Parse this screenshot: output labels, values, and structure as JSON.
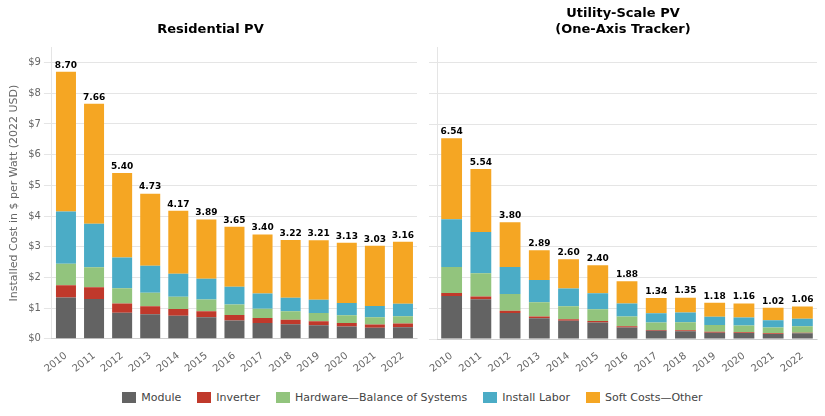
{
  "chart_data": [
    {
      "type": "bar",
      "stacked": true,
      "title": "Residential PV",
      "categories": [
        "2010",
        "2011",
        "2012",
        "2013",
        "2014",
        "2015",
        "2016",
        "2017",
        "2018",
        "2019",
        "2020",
        "2021",
        "2022"
      ],
      "series": [
        {
          "name": "Module",
          "color": "#636363",
          "values": [
            1.35,
            1.3,
            0.85,
            0.8,
            0.75,
            0.7,
            0.6,
            0.52,
            0.48,
            0.44,
            0.4,
            0.36,
            0.38
          ]
        },
        {
          "name": "Inverter",
          "color": "#c0392b",
          "values": [
            0.4,
            0.38,
            0.3,
            0.26,
            0.22,
            0.2,
            0.18,
            0.16,
            0.14,
            0.13,
            0.12,
            0.11,
            0.12
          ]
        },
        {
          "name": "Hardware—Balance of Systems",
          "color": "#92c47d",
          "values": [
            0.7,
            0.65,
            0.5,
            0.44,
            0.4,
            0.38,
            0.34,
            0.3,
            0.28,
            0.27,
            0.25,
            0.23,
            0.24
          ]
        },
        {
          "name": "Install Labor",
          "color": "#4bacc6",
          "values": [
            1.7,
            1.42,
            1.0,
            0.88,
            0.75,
            0.68,
            0.58,
            0.5,
            0.44,
            0.43,
            0.4,
            0.37,
            0.4
          ]
        },
        {
          "name": "Soft Costs—Other",
          "color": "#f5a623",
          "values": [
            4.55,
            3.91,
            2.75,
            2.35,
            2.05,
            1.93,
            1.95,
            1.92,
            1.88,
            1.94,
            1.96,
            1.96,
            2.02
          ]
        }
      ],
      "totals": [
        8.7,
        7.66,
        5.4,
        4.73,
        4.17,
        3.89,
        3.65,
        3.4,
        3.22,
        3.21,
        3.13,
        3.03,
        3.16
      ],
      "total_labels": [
        "8.70",
        "7.66",
        "5.40",
        "4.73",
        "4.17",
        "3.89",
        "3.65",
        "3.40",
        "3.22",
        "3.21",
        "3.13",
        "3.03",
        "3.16"
      ],
      "ylabel": "Installed Cost in $ per Watt (2022 USD)",
      "ylim": [
        0,
        9.5
      ],
      "yticks": [
        {
          "value": 0,
          "label": "$0"
        },
        {
          "value": 1,
          "label": "$1"
        },
        {
          "value": 2,
          "label": "$2"
        },
        {
          "value": 3,
          "label": "$3"
        },
        {
          "value": 4,
          "label": "$4"
        },
        {
          "value": 5,
          "label": "$5"
        },
        {
          "value": 6,
          "label": "$6"
        },
        {
          "value": 7,
          "label": "$7"
        },
        {
          "value": 8,
          "label": "$8"
        },
        {
          "value": 9,
          "label": "$9"
        }
      ],
      "grid": true,
      "legend": "bottom"
    },
    {
      "type": "bar",
      "stacked": true,
      "title": "Utility-Scale PV\n(One-Axis Tracker)",
      "categories": [
        "2010",
        "2011",
        "2012",
        "2013",
        "2014",
        "2015",
        "2016",
        "2017",
        "2018",
        "2019",
        "2020",
        "2021",
        "2022"
      ],
      "series": [
        {
          "name": "Module",
          "color": "#636363",
          "values": [
            1.4,
            1.3,
            0.85,
            0.68,
            0.6,
            0.54,
            0.38,
            0.27,
            0.26,
            0.21,
            0.2,
            0.17,
            0.19
          ]
        },
        {
          "name": "Inverter",
          "color": "#c0392b",
          "values": [
            0.1,
            0.09,
            0.07,
            0.06,
            0.05,
            0.05,
            0.04,
            0.03,
            0.03,
            0.03,
            0.02,
            0.02,
            0.02
          ]
        },
        {
          "name": "Hardware—Balance of Systems",
          "color": "#92c47d",
          "values": [
            0.85,
            0.75,
            0.55,
            0.46,
            0.42,
            0.38,
            0.32,
            0.24,
            0.26,
            0.22,
            0.22,
            0.19,
            0.21
          ]
        },
        {
          "name": "Install Labor",
          "color": "#4bacc6",
          "values": [
            1.55,
            1.35,
            0.88,
            0.72,
            0.58,
            0.52,
            0.42,
            0.3,
            0.32,
            0.27,
            0.26,
            0.23,
            0.24
          ]
        },
        {
          "name": "Soft Costs—Other",
          "color": "#f5a623",
          "values": [
            2.64,
            2.05,
            1.45,
            0.97,
            0.95,
            0.91,
            0.72,
            0.5,
            0.48,
            0.45,
            0.46,
            0.41,
            0.4
          ]
        }
      ],
      "totals": [
        6.54,
        5.54,
        3.8,
        2.89,
        2.6,
        2.4,
        1.88,
        1.34,
        1.35,
        1.18,
        1.16,
        1.02,
        1.06
      ],
      "total_labels": [
        "6.54",
        "5.54",
        "3.80",
        "2.89",
        "2.60",
        "2.40",
        "1.88",
        "1.34",
        "1.35",
        "1.18",
        "1.16",
        "1.02",
        "1.06"
      ],
      "ylim": [
        0,
        9.5
      ],
      "yticks": [
        {
          "value": 0,
          "label": "$0"
        },
        {
          "value": 1,
          "label": "$1"
        },
        {
          "value": 2,
          "label": "$2"
        },
        {
          "value": 3,
          "label": "$3"
        },
        {
          "value": 4,
          "label": "$4"
        },
        {
          "value": 5,
          "label": "$5"
        },
        {
          "value": 6,
          "label": "$6"
        },
        {
          "value": 7,
          "label": "$7"
        },
        {
          "value": 8,
          "label": "$8"
        },
        {
          "value": 9,
          "label": "$9"
        }
      ],
      "grid": true,
      "tick_labels": "x",
      "legend": "bottom"
    }
  ]
}
